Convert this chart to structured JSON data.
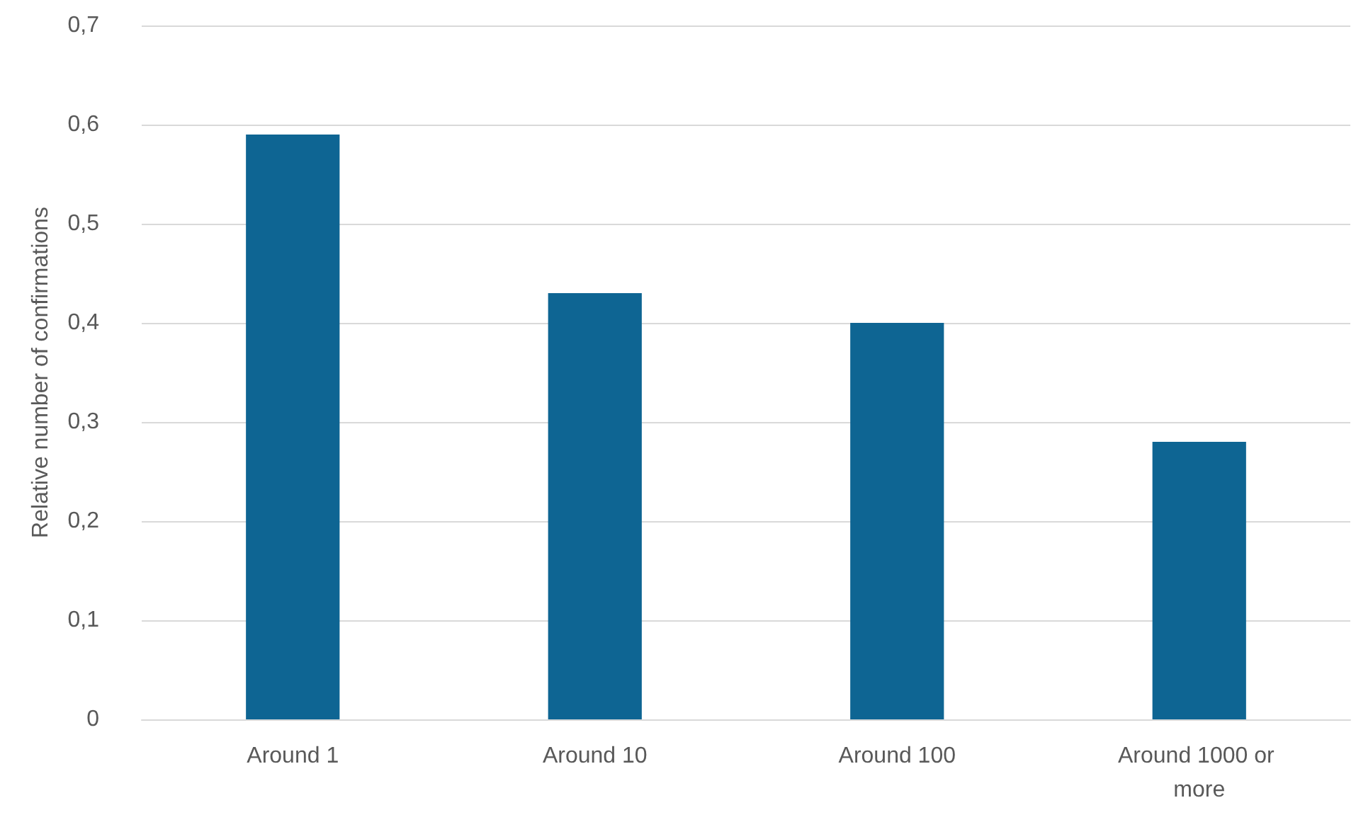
{
  "chart_data": {
    "type": "bar",
    "ylabel": "Relative number of confirmations",
    "categories": [
      "Around 1",
      "Around 10",
      "Around 100",
      "Around 1000 or more"
    ],
    "values": [
      0.59,
      0.43,
      0.4,
      0.28
    ],
    "color": "#0e6593",
    "ylim": [
      0,
      0.7
    ],
    "yticks": [
      0,
      {
        "value": 0.1,
        "label": "0,1"
      },
      {
        "value": 0.2,
        "label": "0,2"
      },
      {
        "value": 0.3,
        "label": "0,3"
      },
      {
        "value": 0.4,
        "label": "0,4"
      },
      {
        "value": 0.5,
        "label": "0,5"
      },
      {
        "value": 0.6,
        "label": "0,6"
      },
      {
        "value": 0.7,
        "label": "0,7"
      }
    ],
    "grid": "y"
  }
}
